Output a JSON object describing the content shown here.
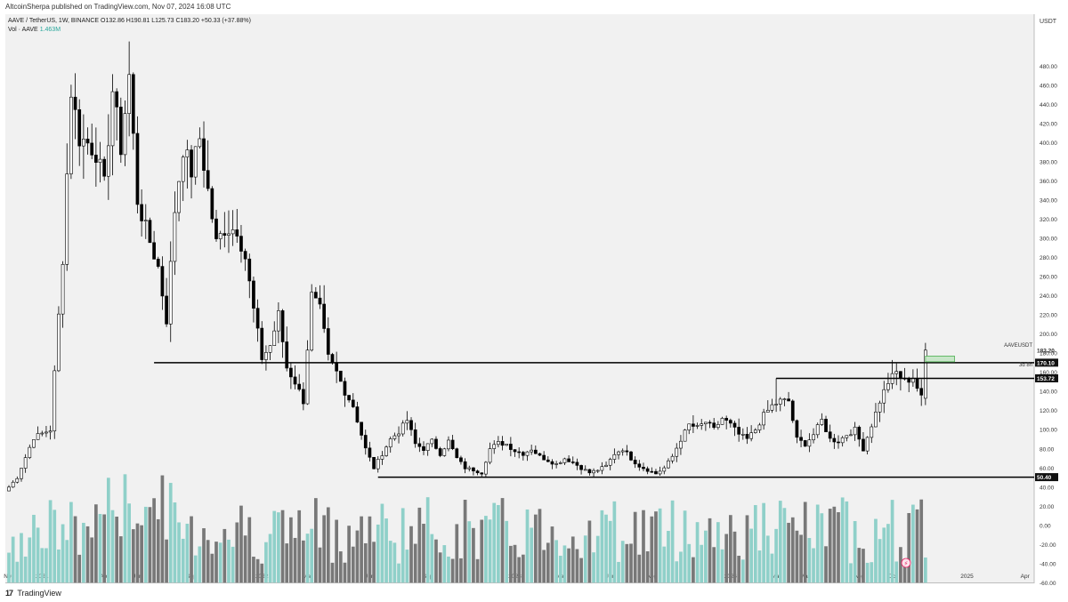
{
  "header": {
    "publisher": "AltcoinSherpa published on TradingView.com, Nov 07, 2024 16:08 UTC"
  },
  "legend": {
    "symbol_line": "AAVE / TetherUS, 1W, BINANCE  O132.86  H190.81  L125.73  C183.20  +50.33 (+37.88%)",
    "vol_label": "Vol · AAVE",
    "vol_value": "1.463M"
  },
  "footer": {
    "brand_logo": "17",
    "brand_name": "TradingView"
  },
  "colors": {
    "background": "#f1f1f1",
    "bull_candle": "#ffffff",
    "bear_candle": "#000000",
    "vol_up": "#8fd0c9",
    "vol_down": "#787878",
    "level_line": "#000000",
    "target_box": "#c8e6c9"
  },
  "chart_data": {
    "type": "candlestick",
    "symbol": "AAVE / TetherUS",
    "interval": "1W",
    "exchange": "BINANCE",
    "last_ohlc": {
      "open": 132.86,
      "high": 190.81,
      "low": 125.73,
      "close": 183.2,
      "change": "+50.33 (+37.88%)"
    },
    "price_axis": {
      "unit": "USDT",
      "ticks": [
        480,
        460,
        440,
        420,
        400,
        380,
        360,
        340,
        320,
        300,
        280,
        260,
        240,
        220,
        200,
        180,
        160,
        140,
        120,
        100,
        80,
        60,
        40,
        20,
        0,
        -20,
        -40,
        -60
      ],
      "tick_labels": [
        "480.00",
        "460.00",
        "440.00",
        "420.00",
        "400.00",
        "380.00",
        "360.00",
        "340.00",
        "320.00",
        "300.00",
        "280.00",
        "260.00",
        "240.00",
        "220.00",
        "200.00",
        "180.00",
        "160.00",
        "140.00",
        "120.00",
        "100.00",
        "80.00",
        "60.00",
        "40.00",
        "20.00",
        "0.00",
        "-20.00",
        "-40.00",
        "-60.00"
      ],
      "ylim": [
        -66,
        505
      ]
    },
    "time_axis": {
      "labels": [
        "Nov",
        "2021",
        "Apr",
        "Jun",
        "Sep",
        "2022",
        "Mar",
        "Jun",
        "Sep",
        "2023",
        "Mar",
        "Jun",
        "Aug",
        "9",
        "2024",
        "Mar",
        "May",
        "Aug",
        "Oct",
        "2025",
        "Apr"
      ],
      "weeks": [
        0,
        8,
        23,
        31,
        44,
        61,
        72,
        87,
        101,
        122,
        133,
        145,
        155,
        164,
        174,
        185,
        192,
        205,
        213,
        231,
        245
      ]
    },
    "price_labels": [
      {
        "label": "AAVEUSDT",
        "value": "183.20"
      },
      {
        "label": "3d 8h",
        "value": "170.10"
      },
      {
        "label": "",
        "value": "153.72"
      },
      {
        "label": "",
        "value": "50.40"
      }
    ],
    "horizontal_levels": [
      {
        "value": 170.1,
        "from_week": 35,
        "to_week": 254
      },
      {
        "value": 153.72,
        "from_week": 185,
        "to_week": 254
      },
      {
        "value": 50.4,
        "from_week": 89,
        "to_week": 254
      }
    ],
    "target_box": {
      "price_low": 171,
      "price_high": 177,
      "from_week": 221,
      "to_week": 228
    },
    "vol_axis_label": "Vol · AAVE",
    "last_volume": "1.463M",
    "series_anchors": [
      [
        0,
        40
      ],
      [
        2,
        50
      ],
      [
        6,
        92
      ],
      [
        10,
        100
      ],
      [
        13,
        280
      ],
      [
        15,
        455
      ],
      [
        17,
        405
      ],
      [
        19,
        400
      ],
      [
        21,
        390
      ],
      [
        23,
        355
      ],
      [
        25,
        455
      ],
      [
        27,
        395
      ],
      [
        29,
        470
      ],
      [
        31,
        340
      ],
      [
        33,
        310
      ],
      [
        36,
        270
      ],
      [
        38,
        215
      ],
      [
        40,
        330
      ],
      [
        42,
        395
      ],
      [
        44,
        370
      ],
      [
        46,
        405
      ],
      [
        48,
        350
      ],
      [
        50,
        295
      ],
      [
        52,
        310
      ],
      [
        55,
        310
      ],
      [
        57,
        280
      ],
      [
        59,
        225
      ],
      [
        61,
        175
      ],
      [
        63,
        188
      ],
      [
        65,
        220
      ],
      [
        67,
        165
      ],
      [
        69,
        150
      ],
      [
        71,
        130
      ],
      [
        73,
        240
      ],
      [
        75,
        225
      ],
      [
        77,
        175
      ],
      [
        79,
        160
      ],
      [
        81,
        140
      ],
      [
        83,
        125
      ],
      [
        86,
        80
      ],
      [
        88,
        60
      ],
      [
        90,
        75
      ],
      [
        92,
        90
      ],
      [
        94,
        98
      ],
      [
        96,
        110
      ],
      [
        98,
        85
      ],
      [
        100,
        80
      ],
      [
        102,
        88
      ],
      [
        104,
        75
      ],
      [
        106,
        88
      ],
      [
        108,
        70
      ],
      [
        110,
        60
      ],
      [
        112,
        58
      ],
      [
        114,
        55
      ],
      [
        116,
        80
      ],
      [
        118,
        86
      ],
      [
        120,
        85
      ],
      [
        122,
        78
      ],
      [
        124,
        75
      ],
      [
        126,
        80
      ],
      [
        128,
        72
      ],
      [
        130,
        68
      ],
      [
        132,
        64
      ],
      [
        134,
        70
      ],
      [
        136,
        66
      ],
      [
        138,
        60
      ],
      [
        140,
        55
      ],
      [
        142,
        58
      ],
      [
        144,
        62
      ],
      [
        146,
        75
      ],
      [
        148,
        80
      ],
      [
        150,
        70
      ],
      [
        152,
        62
      ],
      [
        154,
        58
      ],
      [
        156,
        54
      ],
      [
        158,
        60
      ],
      [
        160,
        72
      ],
      [
        162,
        90
      ],
      [
        164,
        105
      ],
      [
        166,
        102
      ],
      [
        168,
        108
      ],
      [
        170,
        100
      ],
      [
        172,
        112
      ],
      [
        174,
        105
      ],
      [
        176,
        95
      ],
      [
        178,
        90
      ],
      [
        180,
        100
      ],
      [
        182,
        115
      ],
      [
        184,
        125
      ],
      [
        186,
        130
      ],
      [
        188,
        130
      ],
      [
        190,
        90
      ],
      [
        192,
        85
      ],
      [
        194,
        95
      ],
      [
        196,
        110
      ],
      [
        198,
        90
      ],
      [
        200,
        88
      ],
      [
        202,
        95
      ],
      [
        204,
        100
      ],
      [
        206,
        80
      ],
      [
        208,
        105
      ],
      [
        210,
        130
      ],
      [
        212,
        150
      ],
      [
        214,
        160
      ],
      [
        216,
        150
      ],
      [
        218,
        155
      ],
      [
        220,
        133
      ],
      [
        221,
        183.2
      ]
    ]
  }
}
